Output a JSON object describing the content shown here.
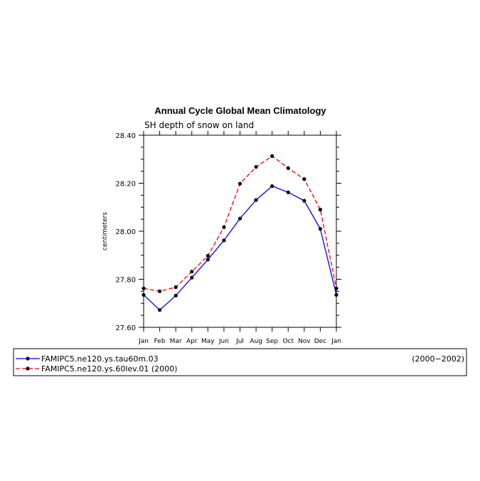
{
  "chart_data": {
    "type": "line",
    "title": "Annual Cycle Global Mean Climatology",
    "subtitle": "SH depth of snow on land",
    "ylabel": "centimeters",
    "xlabel": "",
    "categories": [
      "Jan",
      "Feb",
      "Mar",
      "Apr",
      "May",
      "Jun",
      "Jul",
      "Aug",
      "Sep",
      "Oct",
      "Nov",
      "Dec",
      "Jan"
    ],
    "ylim": [
      27.6,
      28.4
    ],
    "yticks": [
      "27.60",
      "27.80",
      "28.00",
      "28.20",
      "28.40"
    ],
    "grid": false,
    "legend_position": "bottom",
    "series": [
      {
        "name": "FAMIPC5.ne120.ys.tau60m.03",
        "period": "(2000−2002)",
        "color": "#0000ff",
        "dash": "solid",
        "values": [
          27.735,
          27.672,
          27.732,
          27.807,
          27.882,
          27.962,
          28.053,
          28.13,
          28.188,
          28.162,
          28.127,
          28.01,
          27.735
        ]
      },
      {
        "name": "FAMIPC5.ne120.ys.60lev.01 (2000)",
        "period": "",
        "color": "#ff0000",
        "dash": "dashed",
        "values": [
          27.762,
          27.75,
          27.767,
          27.832,
          27.898,
          28.017,
          28.198,
          28.268,
          28.313,
          28.263,
          28.217,
          28.09,
          27.762
        ]
      }
    ]
  }
}
